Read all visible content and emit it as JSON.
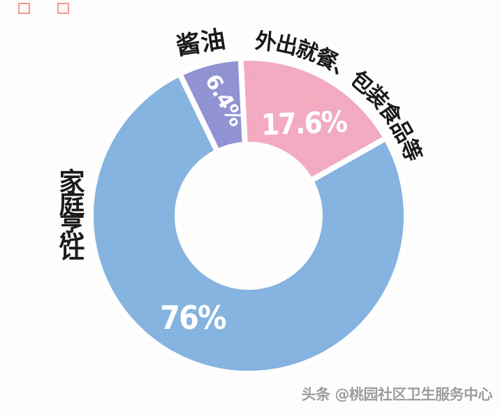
{
  "chart_data": {
    "type": "pie",
    "subtype": "donut",
    "title": "",
    "segments": [
      {
        "label": "家庭烹饪",
        "value": 76,
        "display": "76%",
        "color": "#86b4e1"
      },
      {
        "label": "酱油",
        "value": 6.4,
        "display": "6.4%",
        "color": "#9193d4"
      },
      {
        "label": "外出就餐、包装食品等",
        "value": 17.6,
        "display": "17.6%",
        "color": "#f4abc1"
      }
    ],
    "start_angle_deg": 60.5,
    "clockwise": true,
    "gap_color": "#ffffff",
    "label_color": "#1a1a1a",
    "value_label_color": "#ffffff",
    "legend_position": "around-slices",
    "background": "#fdfdfd"
  },
  "watermark": {
    "text": "头条 @桃园社区卫生服务中心",
    "color": "#9c9c9c"
  }
}
